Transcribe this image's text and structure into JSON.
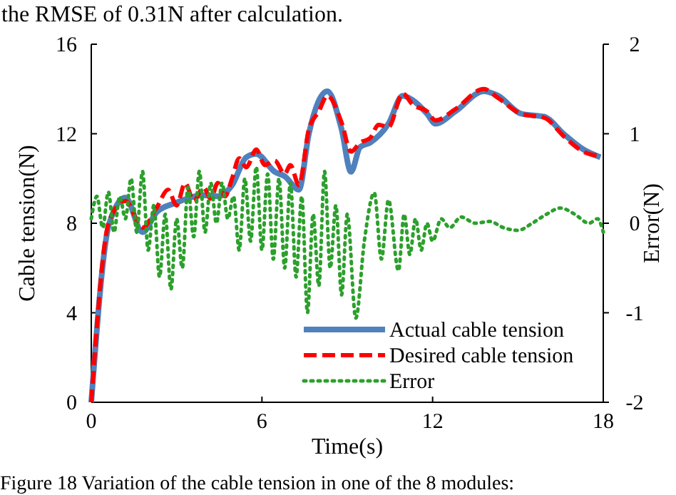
{
  "chart_data": {
    "type": "line",
    "xlabel": "Time(s)",
    "ylabel": "Cable tension(N)",
    "y2label": "Error(N)",
    "annotations": [
      "the RMSE of 0.31N after calculation.",
      "Figure 18 Variation of the cable tension in one of the 8 modules:"
    ],
    "xlim": [
      0,
      18
    ],
    "xticks": [
      0,
      6,
      12,
      18
    ],
    "ylim": [
      0,
      16
    ],
    "yticks": [
      0,
      4,
      8,
      12,
      16
    ],
    "y2lim": [
      -2,
      2
    ],
    "y2ticks": [
      -2,
      -1,
      0,
      1,
      2
    ],
    "legend": "bottom right",
    "grid": false,
    "series": [
      {
        "name": "Actual cable tension",
        "color": "#4f81bd",
        "line_style": "solid",
        "x": [
          0,
          0.63,
          1.2,
          1.8,
          2.3,
          2.95,
          3.95,
          4.45,
          4.95,
          5.45,
          5.8,
          6.45,
          6.8,
          7.3,
          7.65,
          8.3,
          8.8,
          9.13,
          9.45,
          9.8,
          10.45,
          10.95,
          11.3,
          11.8,
          12.1,
          12.8,
          13.8,
          14.3,
          15.1,
          15.95,
          16.6,
          17.3,
          17.9
        ],
        "values": [
          0,
          7.98,
          9.15,
          7.6,
          8.5,
          8.9,
          9.25,
          9.2,
          9.7,
          10.95,
          11.1,
          10.3,
          10.1,
          9.5,
          12.0,
          13.9,
          12.2,
          10.3,
          11.4,
          11.6,
          12.45,
          13.7,
          13.5,
          12.9,
          12.45,
          13.0,
          13.9,
          13.7,
          12.9,
          12.75,
          12.0,
          11.3,
          10.95
        ]
      },
      {
        "name": "Desired cable tension",
        "color": "#ff0000",
        "line_style": "dashed",
        "x": [
          0,
          0.63,
          1.2,
          1.8,
          2.3,
          2.7,
          3.0,
          3.3,
          3.6,
          3.95,
          4.2,
          4.45,
          4.7,
          4.95,
          5.2,
          5.45,
          5.8,
          6.1,
          6.45,
          6.8,
          7.0,
          7.3,
          7.65,
          8.0,
          8.3,
          8.8,
          9.13,
          9.45,
          9.8,
          10.1,
          10.45,
          10.95,
          11.3,
          11.8,
          12.1,
          12.8,
          13.8,
          14.3,
          15.1,
          15.95,
          16.6,
          17.3,
          17.9
        ],
        "values": [
          0,
          8.1,
          9.0,
          7.8,
          8.7,
          9.5,
          8.8,
          9.8,
          9.0,
          9.6,
          9.1,
          9.8,
          9.2,
          10.0,
          10.9,
          10.5,
          11.3,
          10.6,
          10.8,
          10.2,
          10.6,
          9.7,
          12.2,
          13.0,
          13.7,
          12.5,
          11.2,
          11.6,
          11.8,
          12.4,
          12.3,
          13.8,
          13.3,
          13.0,
          12.6,
          13.1,
          14.0,
          13.6,
          12.9,
          12.7,
          11.9,
          11.2,
          11.0
        ]
      },
      {
        "name": "Error",
        "color": "#2ca02c",
        "line_style": "dotted",
        "axis": "y2",
        "x": [
          0,
          0.2,
          0.4,
          0.6,
          0.8,
          1.0,
          1.2,
          1.4,
          1.6,
          1.8,
          2.0,
          2.2,
          2.4,
          2.6,
          2.8,
          3.0,
          3.2,
          3.4,
          3.6,
          3.8,
          4.0,
          4.2,
          4.4,
          4.6,
          4.8,
          5.0,
          5.2,
          5.4,
          5.6,
          5.8,
          6.0,
          6.2,
          6.4,
          6.6,
          6.8,
          7.0,
          7.2,
          7.4,
          7.6,
          7.8,
          8.0,
          8.2,
          8.4,
          8.6,
          8.8,
          9.0,
          9.3,
          9.6,
          9.95,
          10.2,
          10.45,
          10.8,
          11.0,
          11.2,
          11.4,
          11.6,
          11.8,
          12.0,
          12.3,
          12.6,
          13.0,
          13.5,
          14.0,
          14.5,
          15.0,
          15.5,
          16.0,
          16.5,
          17.0,
          17.5,
          17.8,
          18.0
        ],
        "values": [
          0.05,
          0.3,
          -0.05,
          0.35,
          -0.1,
          0.3,
          0.05,
          0.5,
          -0.1,
          0.58,
          -0.3,
          0.2,
          -0.6,
          0.1,
          -0.74,
          0.05,
          -0.5,
          0.4,
          -0.15,
          0.58,
          -0.1,
          0.45,
          0.0,
          0.45,
          0.05,
          0.3,
          -0.3,
          0.5,
          -0.2,
          0.63,
          -0.3,
          0.55,
          -0.4,
          0.5,
          -0.5,
          0.45,
          -0.6,
          0.3,
          -1.0,
          0.1,
          -0.7,
          0.58,
          -0.5,
          0.2,
          -0.8,
          0.1,
          -1.06,
          -0.2,
          0.34,
          -0.4,
          0.26,
          -0.53,
          0.1,
          -0.35,
          0.05,
          -0.3,
          0.0,
          -0.2,
          0.05,
          -0.05,
          0.07,
          0.0,
          0.02,
          -0.05,
          -0.08,
          0.0,
          0.1,
          0.17,
          0.1,
          0.0,
          0.05,
          -0.1
        ]
      }
    ]
  }
}
